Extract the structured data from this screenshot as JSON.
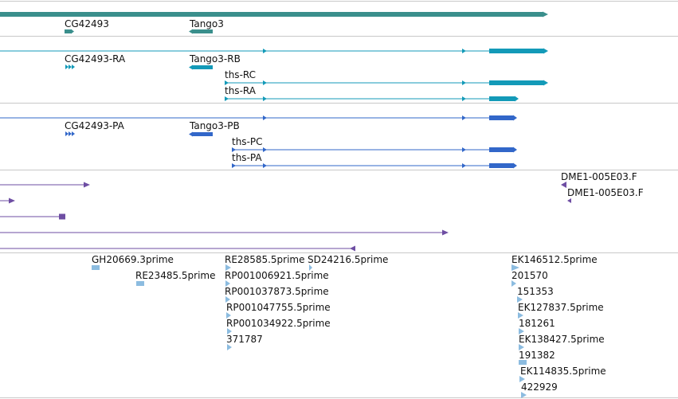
{
  "colors": {
    "gene": "#3a8f8c",
    "transcript_mrna": "#139ab8",
    "transcript_cds": "#3267c9",
    "clone": "#6e4ea3",
    "est": "#8cbce0",
    "separator": "#c8c8c8"
  },
  "gene_track": {
    "labels": [
      "CG42493",
      "Tango3"
    ]
  },
  "mrna_track": {
    "labels": [
      "CG42493-RA",
      "Tango3-RB",
      "ths-RC",
      "ths-RA"
    ]
  },
  "cds_track": {
    "labels": [
      "CG42493-PA",
      "Tango3-PB",
      "ths-PC",
      "ths-PA"
    ]
  },
  "clone_track": {
    "labels": [
      "DME1-005E03.F",
      "DME1-005E03.F"
    ]
  },
  "est_track": {
    "labels": [
      "GH20669.3prime",
      "RE23485.5prime",
      "RE28585.5prime",
      "SD24216.5prime",
      "RP001006921.5prime",
      "RP001037873.5prime",
      "RP001047755.5prime",
      "RP001034922.5prime",
      "371787",
      "EK146512.5prime",
      "201570",
      "151353",
      "EK127837.5prime",
      "181261",
      "EK138427.5prime",
      "191382",
      "EK114835.5prime",
      "422929"
    ]
  }
}
